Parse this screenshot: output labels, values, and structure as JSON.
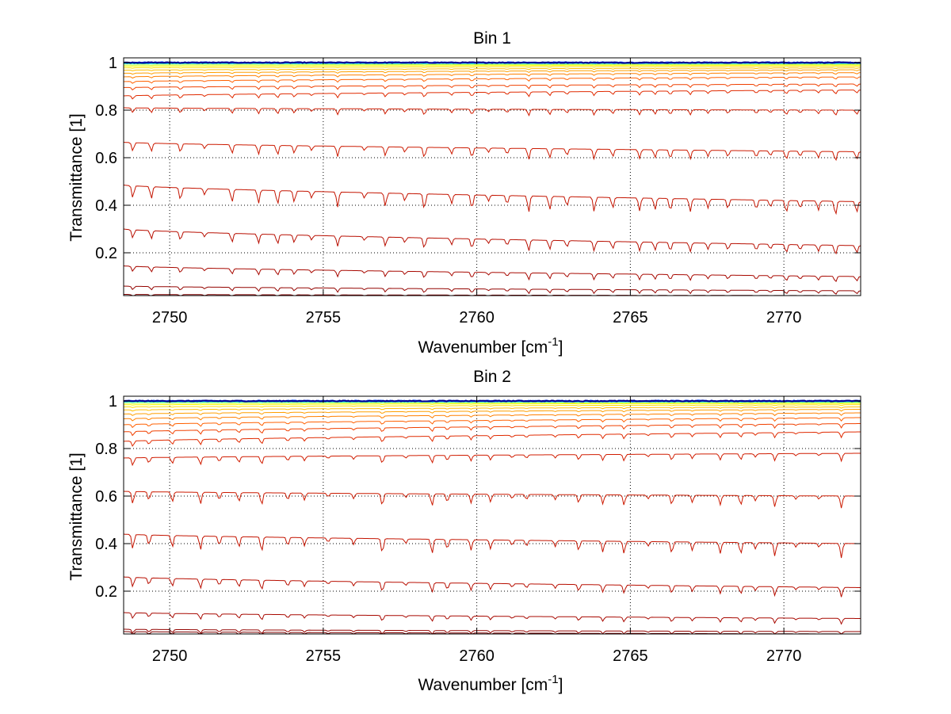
{
  "chart_data": [
    {
      "type": "line",
      "title": "Bin 1",
      "xlabel": "Wavenumber [cm",
      "xlabel_sup": "-1",
      "xlabel_end": "]",
      "ylabel": "Transmittance [1]",
      "xlim": [
        2748.5,
        2772.5
      ],
      "ylim": [
        0.02,
        1.02
      ],
      "xticks": [
        2750,
        2755,
        2760,
        2765,
        2770
      ],
      "yticks": [
        0.2,
        0.4,
        0.6,
        0.8,
        1
      ],
      "ytick_labels": [
        "0.2",
        "0.4",
        "0.6",
        "0.8",
        "1"
      ],
      "xtick_labels": [
        "2750",
        "2755",
        "2760",
        "2765",
        "2770"
      ],
      "grid": true,
      "series_summary": {
        "description_values": "approximate baseline transmittance at start and end of each plotted curve",
        "start": [
          1.0,
          1.0,
          0.998,
          0.995,
          0.99,
          0.985,
          0.978,
          0.968,
          0.955,
          0.94,
          0.92,
          0.895,
          0.86,
          0.81,
          0.665,
          0.485,
          0.3,
          0.145,
          0.06,
          0.025
        ],
        "end": [
          1.0,
          1.0,
          0.998,
          0.996,
          0.993,
          0.99,
          0.985,
          0.978,
          0.97,
          0.958,
          0.94,
          0.91,
          0.885,
          0.8,
          0.625,
          0.415,
          0.23,
          0.1,
          0.04,
          0.02
        ],
        "colors": [
          "#00008f",
          "#0040ff",
          "#00bfff",
          "#40ffbf",
          "#bfff40",
          "#ffff00",
          "#ffdf00",
          "#ffbf00",
          "#ff9f00",
          "#ff8000",
          "#ff6000",
          "#f04000",
          "#e02a00",
          "#d01c00",
          "#cc1a00",
          "#c41400",
          "#b80e00",
          "#a80800",
          "#940400",
          "#800000"
        ]
      }
    },
    {
      "type": "line",
      "title": "Bin 2",
      "xlabel": "Wavenumber [cm",
      "xlabel_sup": "-1",
      "xlabel_end": "]",
      "ylabel": "Transmittance [1]",
      "xlim": [
        2748.5,
        2772.5
      ],
      "ylim": [
        0.02,
        1.02
      ],
      "xticks": [
        2750,
        2755,
        2760,
        2765,
        2770
      ],
      "yticks": [
        0.2,
        0.4,
        0.6,
        0.8,
        1
      ],
      "ytick_labels": [
        "0.2",
        "0.4",
        "0.6",
        "0.8",
        "1"
      ],
      "xtick_labels": [
        "2750",
        "2755",
        "2760",
        "2765",
        "2770"
      ],
      "grid": true,
      "series_summary": {
        "description_values": "approximate baseline transmittance at start and end of each plotted curve",
        "start": [
          1.0,
          1.0,
          0.998,
          0.995,
          0.99,
          0.984,
          0.975,
          0.962,
          0.945,
          0.925,
          0.9,
          0.87,
          0.83,
          0.76,
          0.62,
          0.44,
          0.26,
          0.11,
          0.04,
          0.03
        ],
        "end": [
          1.0,
          1.0,
          0.998,
          0.996,
          0.993,
          0.99,
          0.984,
          0.975,
          0.965,
          0.95,
          0.93,
          0.905,
          0.87,
          0.78,
          0.6,
          0.4,
          0.215,
          0.085,
          0.03,
          0.02
        ],
        "colors": [
          "#00008f",
          "#0040ff",
          "#00bfff",
          "#40ffbf",
          "#bfff40",
          "#ffff00",
          "#ffdf00",
          "#ffbf00",
          "#ff9f00",
          "#ff8000",
          "#ff6000",
          "#f04000",
          "#e02a00",
          "#d01c00",
          "#cc1a00",
          "#c41400",
          "#b80e00",
          "#a80800",
          "#940400",
          "#800000"
        ]
      }
    }
  ]
}
